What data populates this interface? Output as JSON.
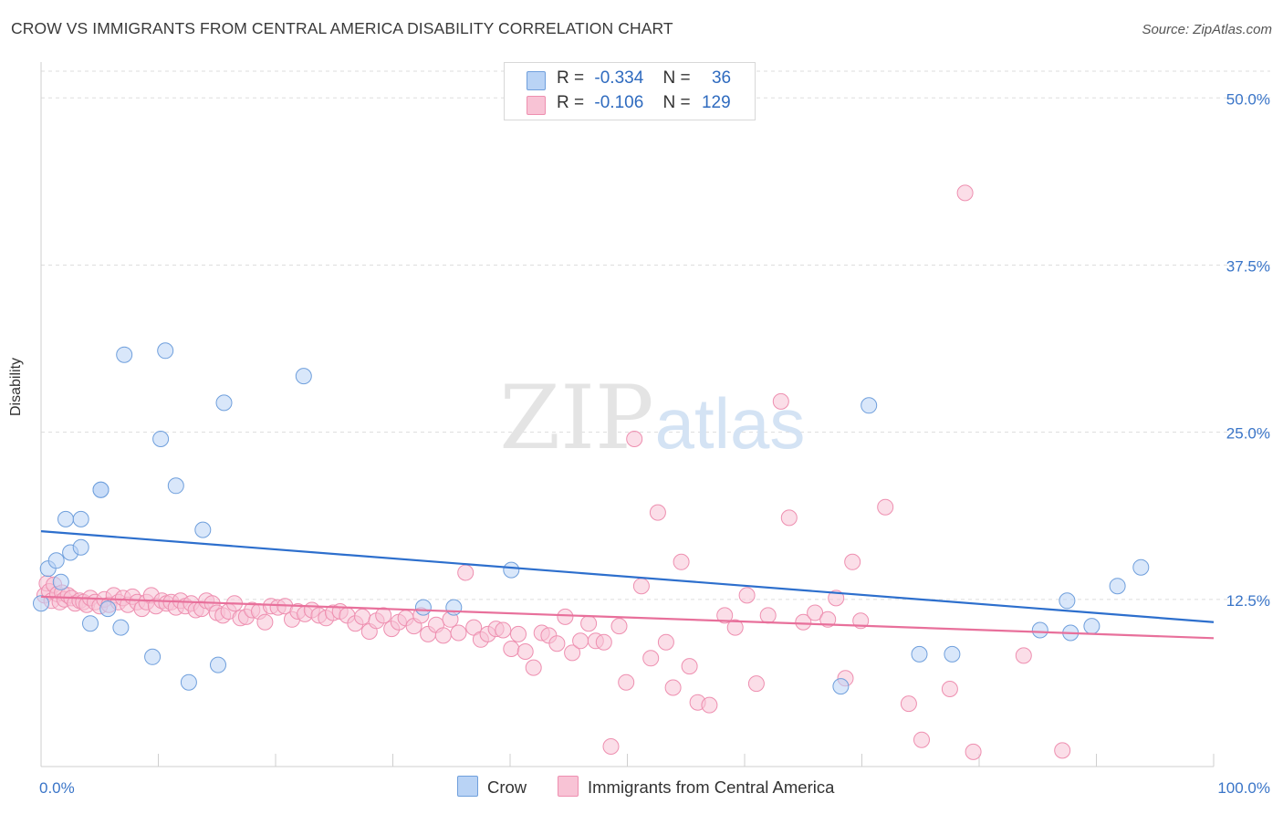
{
  "title": "CROW VS IMMIGRANTS FROM CENTRAL AMERICA DISABILITY CORRELATION CHART",
  "source": "Source: ZipAtlas.com",
  "watermark": {
    "zip": "ZIP",
    "atlas": "atlas"
  },
  "legend_top": {
    "rows": [
      {
        "r_label": "R =",
        "r_value": "-0.334",
        "n_label": "N =",
        "n_value": "36"
      },
      {
        "r_label": "R =",
        "r_value": "-0.106",
        "n_label": "N =",
        "n_value": "129"
      }
    ]
  },
  "legend_bottom": {
    "series1": "Crow",
    "series2": "Immigrants from Central America"
  },
  "colors": {
    "crow_fill": "#b9d3f5",
    "crow_stroke": "#6f9fdc",
    "crow_line": "#2d6fcd",
    "imm_fill": "#f8c3d5",
    "imm_stroke": "#ee8fb0",
    "imm_line": "#e8709b",
    "axis_text": "#3a75c8",
    "grid": "#dddddd"
  },
  "chart_data": {
    "type": "scatter",
    "title": "CROW VS IMMIGRANTS FROM CENTRAL AMERICA DISABILITY CORRELATION CHART",
    "xlabel": "",
    "ylabel": "Disability",
    "xlim": [
      0,
      100
    ],
    "ylim": [
      0,
      52
    ],
    "x_tick_labels": [
      "0.0%",
      "100.0%"
    ],
    "y_ticks": [
      12.5,
      25.0,
      37.5,
      50.0
    ],
    "y_tick_labels": [
      "12.5%",
      "25.0%",
      "37.5%",
      "50.0%"
    ],
    "grid": "horizontal-dashed",
    "legend_placement": "top-center",
    "series": [
      {
        "name": "Crow",
        "r": -0.334,
        "n": 36,
        "trend": {
          "x": [
            0,
            100
          ],
          "y": [
            17.6,
            10.8
          ]
        },
        "points": [
          [
            0,
            12.2
          ],
          [
            0.6,
            14.8
          ],
          [
            1.3,
            15.4
          ],
          [
            1.7,
            13.8
          ],
          [
            2.1,
            18.5
          ],
          [
            2.5,
            16.0
          ],
          [
            3.4,
            16.4
          ],
          [
            3.4,
            18.5
          ],
          [
            4.2,
            10.7
          ],
          [
            5.1,
            20.7
          ],
          [
            5.1,
            20.7
          ],
          [
            5.7,
            11.8
          ],
          [
            6.8,
            10.4
          ],
          [
            7.1,
            30.8
          ],
          [
            9.5,
            8.2
          ],
          [
            10.2,
            24.5
          ],
          [
            10.6,
            31.1
          ],
          [
            11.5,
            21.0
          ],
          [
            12.6,
            6.3
          ],
          [
            13.8,
            17.7
          ],
          [
            15.1,
            7.6
          ],
          [
            15.6,
            27.2
          ],
          [
            22.4,
            29.2
          ],
          [
            32.6,
            11.9
          ],
          [
            35.2,
            11.9
          ],
          [
            40.1,
            14.7
          ],
          [
            70.6,
            27.0
          ],
          [
            68.2,
            6.0
          ],
          [
            74.9,
            8.4
          ],
          [
            77.7,
            8.4
          ],
          [
            85.2,
            10.2
          ],
          [
            87.5,
            12.4
          ],
          [
            87.8,
            10.0
          ],
          [
            89.6,
            10.5
          ],
          [
            91.8,
            13.5
          ],
          [
            93.8,
            14.9
          ]
        ]
      },
      {
        "name": "Immigrants from Central America",
        "r": -0.106,
        "n": 129,
        "trend": {
          "x": [
            0,
            100
          ],
          "y": [
            12.7,
            9.6
          ]
        },
        "points": [
          [
            0.3,
            12.8
          ],
          [
            0.5,
            13.7
          ],
          [
            0.7,
            13.1
          ],
          [
            0.9,
            12.4
          ],
          [
            1.1,
            13.6
          ],
          [
            1.4,
            12.9
          ],
          [
            1.6,
            12.3
          ],
          [
            1.8,
            13.0
          ],
          [
            2.0,
            12.5
          ],
          [
            2.3,
            12.8
          ],
          [
            2.6,
            12.6
          ],
          [
            2.9,
            12.2
          ],
          [
            3.3,
            12.4
          ],
          [
            3.6,
            12.3
          ],
          [
            3.9,
            12.1
          ],
          [
            4.2,
            12.6
          ],
          [
            4.6,
            12.3
          ],
          [
            5.0,
            12.0
          ],
          [
            5.4,
            12.5
          ],
          [
            5.8,
            12.1
          ],
          [
            6.2,
            12.8
          ],
          [
            6.6,
            12.3
          ],
          [
            7.0,
            12.6
          ],
          [
            7.4,
            12.1
          ],
          [
            7.8,
            12.7
          ],
          [
            8.2,
            12.3
          ],
          [
            8.6,
            11.8
          ],
          [
            9.0,
            12.3
          ],
          [
            9.4,
            12.8
          ],
          [
            9.8,
            12.0
          ],
          [
            10.3,
            12.4
          ],
          [
            10.7,
            12.2
          ],
          [
            11.1,
            12.3
          ],
          [
            11.5,
            11.9
          ],
          [
            11.9,
            12.4
          ],
          [
            12.3,
            12.0
          ],
          [
            12.8,
            12.2
          ],
          [
            13.2,
            11.7
          ],
          [
            13.7,
            11.8
          ],
          [
            14.1,
            12.4
          ],
          [
            14.6,
            12.2
          ],
          [
            15.0,
            11.5
          ],
          [
            15.5,
            11.3
          ],
          [
            16.0,
            11.6
          ],
          [
            16.5,
            12.2
          ],
          [
            17.0,
            11.1
          ],
          [
            17.5,
            11.2
          ],
          [
            18.0,
            11.7
          ],
          [
            18.6,
            11.6
          ],
          [
            19.1,
            10.8
          ],
          [
            19.6,
            12.0
          ],
          [
            20.2,
            11.9
          ],
          [
            20.8,
            12.0
          ],
          [
            21.4,
            11.0
          ],
          [
            21.9,
            11.6
          ],
          [
            22.5,
            11.4
          ],
          [
            23.1,
            11.7
          ],
          [
            23.7,
            11.3
          ],
          [
            24.3,
            11.1
          ],
          [
            24.9,
            11.5
          ],
          [
            25.5,
            11.6
          ],
          [
            26.1,
            11.3
          ],
          [
            26.8,
            10.7
          ],
          [
            27.4,
            11.2
          ],
          [
            28.0,
            10.1
          ],
          [
            28.6,
            10.9
          ],
          [
            29.2,
            11.3
          ],
          [
            29.9,
            10.3
          ],
          [
            30.5,
            10.8
          ],
          [
            31.1,
            11.1
          ],
          [
            31.8,
            10.5
          ],
          [
            32.4,
            11.3
          ],
          [
            33.0,
            9.9
          ],
          [
            33.7,
            10.6
          ],
          [
            34.3,
            9.8
          ],
          [
            34.9,
            11.0
          ],
          [
            35.6,
            10.0
          ],
          [
            36.2,
            14.5
          ],
          [
            36.9,
            10.4
          ],
          [
            37.5,
            9.5
          ],
          [
            38.1,
            9.9
          ],
          [
            38.8,
            10.3
          ],
          [
            39.4,
            10.2
          ],
          [
            40.1,
            8.8
          ],
          [
            40.7,
            9.9
          ],
          [
            41.3,
            8.6
          ],
          [
            42.0,
            7.4
          ],
          [
            42.7,
            10.0
          ],
          [
            43.3,
            9.8
          ],
          [
            44.0,
            9.2
          ],
          [
            44.7,
            11.2
          ],
          [
            45.3,
            8.5
          ],
          [
            46.0,
            9.4
          ],
          [
            46.7,
            10.7
          ],
          [
            47.3,
            9.4
          ],
          [
            48.0,
            9.3
          ],
          [
            48.6,
            1.5
          ],
          [
            49.3,
            10.5
          ],
          [
            49.9,
            6.3
          ],
          [
            50.6,
            24.5
          ],
          [
            51.2,
            13.5
          ],
          [
            52.0,
            8.1
          ],
          [
            52.6,
            19.0
          ],
          [
            53.3,
            9.3
          ],
          [
            53.9,
            5.9
          ],
          [
            54.6,
            15.3
          ],
          [
            55.3,
            7.5
          ],
          [
            56.0,
            4.8
          ],
          [
            57.0,
            4.6
          ],
          [
            58.3,
            11.3
          ],
          [
            59.2,
            10.4
          ],
          [
            60.2,
            12.8
          ],
          [
            61.0,
            6.2
          ],
          [
            62.0,
            11.3
          ],
          [
            63.1,
            27.3
          ],
          [
            63.8,
            18.6
          ],
          [
            65.0,
            10.8
          ],
          [
            66.0,
            11.5
          ],
          [
            67.1,
            11.0
          ],
          [
            67.8,
            12.6
          ],
          [
            68.6,
            6.6
          ],
          [
            69.2,
            15.3
          ],
          [
            69.9,
            10.9
          ],
          [
            72.0,
            19.4
          ],
          [
            74.0,
            4.7
          ],
          [
            75.1,
            2.0
          ],
          [
            77.5,
            5.8
          ],
          [
            78.8,
            42.9
          ],
          [
            79.5,
            1.1
          ],
          [
            83.8,
            8.3
          ],
          [
            87.1,
            1.2
          ]
        ]
      }
    ]
  }
}
